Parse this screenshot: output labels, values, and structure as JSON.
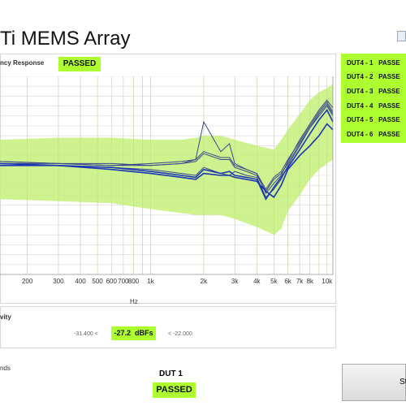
{
  "window": {
    "title": "Ti MEMS Array"
  },
  "frequency_response": {
    "label": "ncy Response",
    "status": "PASSED",
    "x_axis_label": "Hz",
    "x_ticks": [
      "200",
      "300",
      "400",
      "500",
      "600",
      "700",
      "800",
      "1k",
      "2k",
      "3k",
      "4k",
      "5k",
      "6k",
      "7k",
      "8k",
      "10k"
    ]
  },
  "dut_results": [
    {
      "label": "DUT4 - 1",
      "status": "PASSE"
    },
    {
      "label": "DUT4 - 2",
      "status": "PASSE"
    },
    {
      "label": "DUT4 - 3",
      "status": "PASSE"
    },
    {
      "label": "DUT4 - 4",
      "status": "PASSE"
    },
    {
      "label": "DUT4 - 5",
      "status": "PASSE"
    },
    {
      "label": "DUT4 - 6",
      "status": "PASSE"
    }
  ],
  "sensitivity": {
    "label": "vity",
    "lower_limit": "-31.400 <",
    "value": "-27.2",
    "unit": "dBFs",
    "upper_limit": "< -22.000"
  },
  "footer": {
    "section_label": "nds",
    "dut_title": "DUT 1",
    "dut_status": "PASSED",
    "side_button_label": "St"
  },
  "colors": {
    "pass_green": "#adff2f",
    "band_green": "#c6f07a",
    "curve_primary": "#1a35b8",
    "curve_secondary": "#39478f"
  },
  "chart_data": {
    "type": "line",
    "title": "",
    "xlabel": "Hz",
    "ylabel": "",
    "x_scale": "log",
    "xlim": [
      140,
      10800
    ],
    "ylim": [
      0,
      10
    ],
    "grid": true,
    "x_ticks": [
      200,
      300,
      400,
      500,
      600,
      700,
      800,
      1000,
      2000,
      3000,
      4000,
      5000,
      6000,
      7000,
      8000,
      10000
    ],
    "band": {
      "x": [
        140,
        300,
        600,
        1000,
        1500,
        1800,
        2000,
        2500,
        3000,
        4000,
        5000,
        5500,
        6000,
        7000,
        8000,
        9000,
        10000,
        10800
      ],
      "upper": [
        6.8,
        6.9,
        6.9,
        6.8,
        6.8,
        6.9,
        7.0,
        7.0,
        6.8,
        6.5,
        6.3,
        6.8,
        7.3,
        8.1,
        8.8,
        9.2,
        9.4,
        9.6
      ],
      "lower": [
        3.8,
        3.7,
        3.6,
        3.3,
        3.1,
        3.0,
        3.0,
        3.0,
        2.8,
        2.4,
        2.0,
        2.3,
        3.2,
        4.0,
        4.8,
        5.3,
        5.6,
        5.8
      ]
    },
    "series": [
      {
        "x": [
          140,
          300,
          600,
          1000,
          1500,
          1800,
          2000,
          2500,
          2800,
          3000,
          3500,
          4000,
          4500,
          5000,
          5500,
          6000,
          7000,
          8000,
          9000,
          10000,
          10800
        ],
        "values": [
          5.6,
          5.5,
          5.4,
          5.3,
          5.1,
          5.0,
          5.4,
          5.1,
          5.0,
          5.2,
          5.0,
          4.9,
          3.9,
          4.3,
          4.8,
          5.5,
          6.5,
          7.4,
          8.1,
          8.6,
          8.1
        ]
      },
      {
        "x": [
          140,
          300,
          600,
          1000,
          1500,
          1800,
          2000,
          2500,
          2800,
          3000,
          3500,
          4000,
          4500,
          5000,
          5500,
          6000,
          7000,
          8000,
          9000,
          10000,
          10800
        ],
        "values": [
          5.7,
          5.6,
          5.6,
          5.5,
          5.6,
          5.8,
          7.7,
          6.2,
          6.6,
          5.6,
          5.3,
          5.1,
          4.1,
          4.6,
          5.0,
          5.7,
          6.8,
          7.6,
          8.3,
          8.8,
          8.4
        ]
      },
      {
        "x": [
          140,
          300,
          600,
          1000,
          1500,
          1800,
          2000,
          2500,
          2800,
          3000,
          3500,
          4000,
          4500,
          5000,
          5500,
          6000,
          7000,
          8000,
          9000,
          10000,
          10800
        ],
        "values": [
          5.6,
          5.6,
          5.5,
          5.5,
          5.6,
          5.7,
          6.1,
          5.8,
          5.8,
          5.4,
          5.2,
          5.0,
          4.2,
          4.8,
          5.1,
          5.6,
          6.6,
          7.4,
          8.0,
          8.5,
          8.0
        ]
      },
      {
        "x": [
          140,
          300,
          600,
          1000,
          1500,
          1800,
          2000,
          2500,
          2800,
          3000,
          3500,
          4000,
          4500,
          5000,
          5500,
          6000,
          7000,
          8000,
          9000,
          10000,
          10800
        ],
        "values": [
          5.7,
          5.6,
          5.5,
          5.6,
          5.7,
          5.8,
          6.2,
          5.9,
          5.9,
          5.5,
          5.3,
          5.1,
          4.3,
          4.9,
          5.2,
          5.8,
          6.7,
          7.5,
          8.2,
          8.7,
          8.2
        ]
      },
      {
        "x": [
          140,
          300,
          600,
          1000,
          1500,
          1800,
          2000,
          2500,
          2800,
          3000,
          3500,
          4000,
          4500,
          5000,
          5500,
          6000,
          7000,
          8000,
          9000,
          10000,
          10800
        ],
        "values": [
          5.6,
          5.5,
          5.4,
          5.2,
          5.0,
          4.9,
          5.3,
          5.1,
          5.2,
          5.0,
          4.9,
          4.8,
          3.8,
          4.4,
          4.9,
          5.4,
          6.3,
          7.1,
          7.8,
          8.3,
          7.7
        ]
      },
      {
        "x": [
          140,
          300,
          600,
          1000,
          1500,
          1800,
          2000,
          2500,
          2800,
          3000,
          3500,
          4000,
          4500,
          5000,
          5500,
          6000,
          7000,
          8000,
          9000,
          10000,
          10800
        ],
        "values": [
          5.5,
          5.5,
          5.3,
          5.1,
          4.9,
          4.8,
          5.1,
          5.0,
          5.0,
          4.9,
          4.8,
          4.7,
          4.2,
          3.9,
          4.5,
          5.3,
          6.0,
          6.5,
          7.0,
          7.6,
          7.3
        ]
      }
    ]
  }
}
